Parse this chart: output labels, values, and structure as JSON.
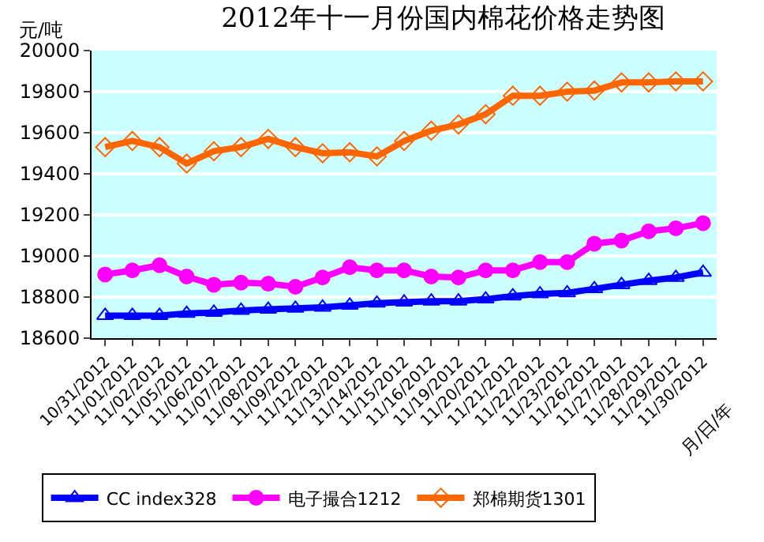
{
  "chart_data": {
    "type": "line",
    "title": "2012年十一月份国内棉花价格走势图",
    "ylabel": "元/吨",
    "xlabel": "月/日/年",
    "categories": [
      "10/31/2012",
      "11/01/2012",
      "11/02/2012",
      "11/05/2012",
      "11/06/2012",
      "11/07/2012",
      "11/08/2012",
      "11/09/2012",
      "11/12/2012",
      "11/13/2012",
      "11/14/2012",
      "11/15/2012",
      "11/16/2012",
      "11/19/2012",
      "11/20/2012",
      "11/21/2012",
      "11/22/2012",
      "11/23/2012",
      "11/26/2012",
      "11/27/2012",
      "11/28/2012",
      "11/29/2012",
      "11/30/2012"
    ],
    "series": [
      {
        "name": "CC index328",
        "color": "#0000ff",
        "marker": "triangle",
        "values": [
          18710,
          18710,
          18710,
          18720,
          18725,
          18735,
          18740,
          18745,
          18750,
          18760,
          18770,
          18775,
          18780,
          18780,
          18790,
          18805,
          18815,
          18820,
          18840,
          18860,
          18880,
          18895,
          18920
        ]
      },
      {
        "name": "电子撮合1212",
        "color": "#ff00ff",
        "marker": "circle",
        "values": [
          18910,
          18930,
          18955,
          18900,
          18860,
          18870,
          18865,
          18850,
          18895,
          18945,
          18930,
          18930,
          18900,
          18895,
          18930,
          18930,
          18970,
          18970,
          19060,
          19075,
          19120,
          19135,
          19160
        ]
      },
      {
        "name": "郑棉期货1301",
        "color": "#ff6600",
        "marker": "diamond",
        "values": [
          19530,
          19560,
          19530,
          19450,
          19510,
          19530,
          19570,
          19530,
          19500,
          19505,
          19485,
          19560,
          19610,
          19640,
          19690,
          19780,
          19780,
          19800,
          19805,
          19845,
          19845,
          19850,
          19850
        ]
      }
    ],
    "ylim": [
      18600,
      20000
    ],
    "yticks": [
      18600,
      18800,
      19000,
      19200,
      19400,
      19600,
      19800,
      20000
    ],
    "grid": "y",
    "legend": "bottom",
    "line_style": "solid"
  }
}
